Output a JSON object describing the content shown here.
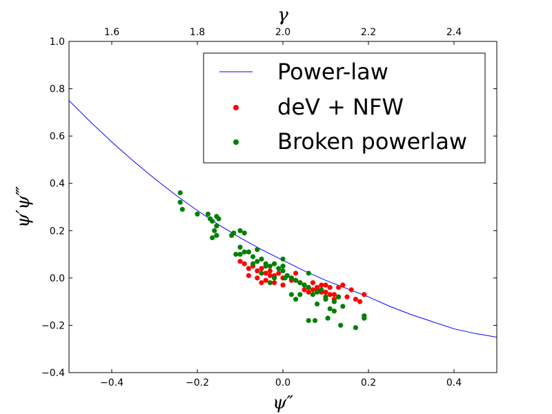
{
  "chart_data": {
    "type": "scatter",
    "xlabel": "ψ″",
    "ylabel": "ψ′ψ‴",
    "top_label": "γ",
    "xlim": [
      -0.5,
      0.5
    ],
    "ylim": [
      -0.4,
      1.0
    ],
    "x_ticks": [
      -0.4,
      -0.2,
      0.0,
      0.2,
      0.4
    ],
    "x_tick_labels": [
      "−0.4",
      "−0.2",
      "0.0",
      "0.2",
      "0.4"
    ],
    "y_ticks": [
      -0.4,
      -0.2,
      0.0,
      0.2,
      0.4,
      0.6,
      0.8,
      1.0
    ],
    "y_tick_labels": [
      "−0.4",
      "−0.2",
      "0.0",
      "0.2",
      "0.4",
      "0.6",
      "0.8",
      "1.0"
    ],
    "top_ticks": [
      1.6,
      1.8,
      2.0,
      2.2,
      2.4
    ],
    "top_tick_labels": [
      "1.6",
      "1.8",
      "2.0",
      "2.2",
      "2.4"
    ],
    "top_lim": [
      1.5,
      2.5
    ],
    "grid": false,
    "legend_position": "top-right",
    "series": [
      {
        "name": "Power-law",
        "kind": "line",
        "color": "#0000ff",
        "x": [
          -0.5,
          -0.45,
          -0.4,
          -0.35,
          -0.3,
          -0.25,
          -0.2,
          -0.15,
          -0.1,
          -0.05,
          0.0,
          0.05,
          0.1,
          0.15,
          0.2,
          0.25,
          0.3,
          0.35,
          0.4,
          0.45,
          0.5
        ],
        "y": [
          0.75,
          0.66,
          0.575,
          0.495,
          0.42,
          0.35,
          0.285,
          0.225,
          0.17,
          0.12,
          0.075,
          0.03,
          -0.01,
          -0.045,
          -0.08,
          -0.12,
          -0.155,
          -0.185,
          -0.215,
          -0.235,
          -0.25
        ]
      },
      {
        "name": "deV + NFW",
        "kind": "scatter",
        "color": "#ff0000",
        "x": [
          -0.1,
          -0.09,
          -0.08,
          -0.07,
          -0.06,
          -0.05,
          -0.04,
          -0.03,
          -0.02,
          -0.01,
          0.0,
          0.01,
          0.02,
          0.03,
          0.04,
          0.05,
          0.06,
          0.07,
          0.08,
          0.09,
          0.1,
          0.11,
          0.12,
          0.13,
          0.15,
          0.17,
          0.19,
          -0.06,
          -0.04,
          -0.02,
          0.0,
          0.02,
          0.04,
          0.06,
          0.08,
          0.1,
          0.12,
          0.14,
          -0.08,
          -0.03,
          0.03,
          0.07,
          0.11,
          0.16,
          -0.05,
          0.05,
          0.09,
          0.13,
          0.18
        ],
        "y": [
          0.07,
          0.06,
          0.04,
          0.05,
          0.03,
          0.04,
          0.02,
          0.03,
          0.01,
          0.02,
          0.0,
          0.01,
          0.0,
          -0.01,
          -0.02,
          -0.03,
          -0.04,
          -0.05,
          -0.05,
          -0.06,
          -0.06,
          -0.07,
          -0.07,
          -0.08,
          -0.08,
          -0.09,
          -0.07,
          0.0,
          -0.01,
          -0.02,
          -0.03,
          -0.01,
          -0.02,
          -0.06,
          -0.04,
          -0.03,
          -0.09,
          -0.03,
          0.01,
          0.01,
          0.02,
          -0.02,
          -0.04,
          -0.05,
          -0.02,
          -0.05,
          -0.03,
          -0.04,
          -0.1
        ]
      },
      {
        "name": "Broken powerlaw",
        "kind": "scatter",
        "color": "#008000",
        "x": [
          -0.24,
          -0.235,
          -0.24,
          -0.2,
          -0.175,
          -0.17,
          -0.165,
          -0.155,
          -0.16,
          -0.155,
          -0.15,
          -0.155,
          -0.165,
          -0.11,
          -0.1,
          -0.12,
          -0.09,
          -0.115,
          -0.1,
          -0.08,
          -0.07,
          -0.06,
          -0.05,
          -0.04,
          -0.03,
          -0.02,
          -0.01,
          0.0,
          0.01,
          0.02,
          0.03,
          0.04,
          0.05,
          0.06,
          0.07,
          0.08,
          0.09,
          0.1,
          0.11,
          0.12,
          0.13,
          0.14,
          0.19,
          0.19,
          0.17,
          0.135,
          0.12,
          0.105,
          0.075,
          0.06,
          -0.06,
          -0.04,
          -0.02,
          0.0,
          0.02,
          0.04,
          0.06,
          -0.09,
          -0.07,
          -0.03,
          0.005,
          0.03,
          0.05,
          0.08,
          0.1,
          -0.1,
          -0.05,
          0.0
        ],
        "y": [
          0.36,
          0.29,
          0.32,
          0.27,
          0.27,
          0.25,
          0.24,
          0.26,
          0.2,
          0.22,
          0.25,
          0.18,
          0.17,
          0.1,
          0.13,
          0.18,
          0.11,
          0.19,
          0.2,
          0.11,
          0.09,
          0.07,
          0.08,
          0.06,
          0.05,
          0.06,
          0.04,
          0.03,
          0.01,
          0.0,
          -0.01,
          -0.02,
          -0.03,
          -0.04,
          -0.07,
          -0.06,
          -0.05,
          -0.09,
          -0.13,
          -0.1,
          -0.08,
          -0.12,
          -0.16,
          -0.17,
          -0.21,
          -0.2,
          -0.14,
          -0.17,
          -0.18,
          -0.18,
          0.12,
          0.05,
          0.0,
          0.05,
          -0.07,
          -0.07,
          0.02,
          0.19,
          0.06,
          -0.02,
          0.0,
          -0.09,
          -0.03,
          -0.11,
          -0.08,
          0.1,
          0.02,
          0.08
        ]
      }
    ]
  }
}
